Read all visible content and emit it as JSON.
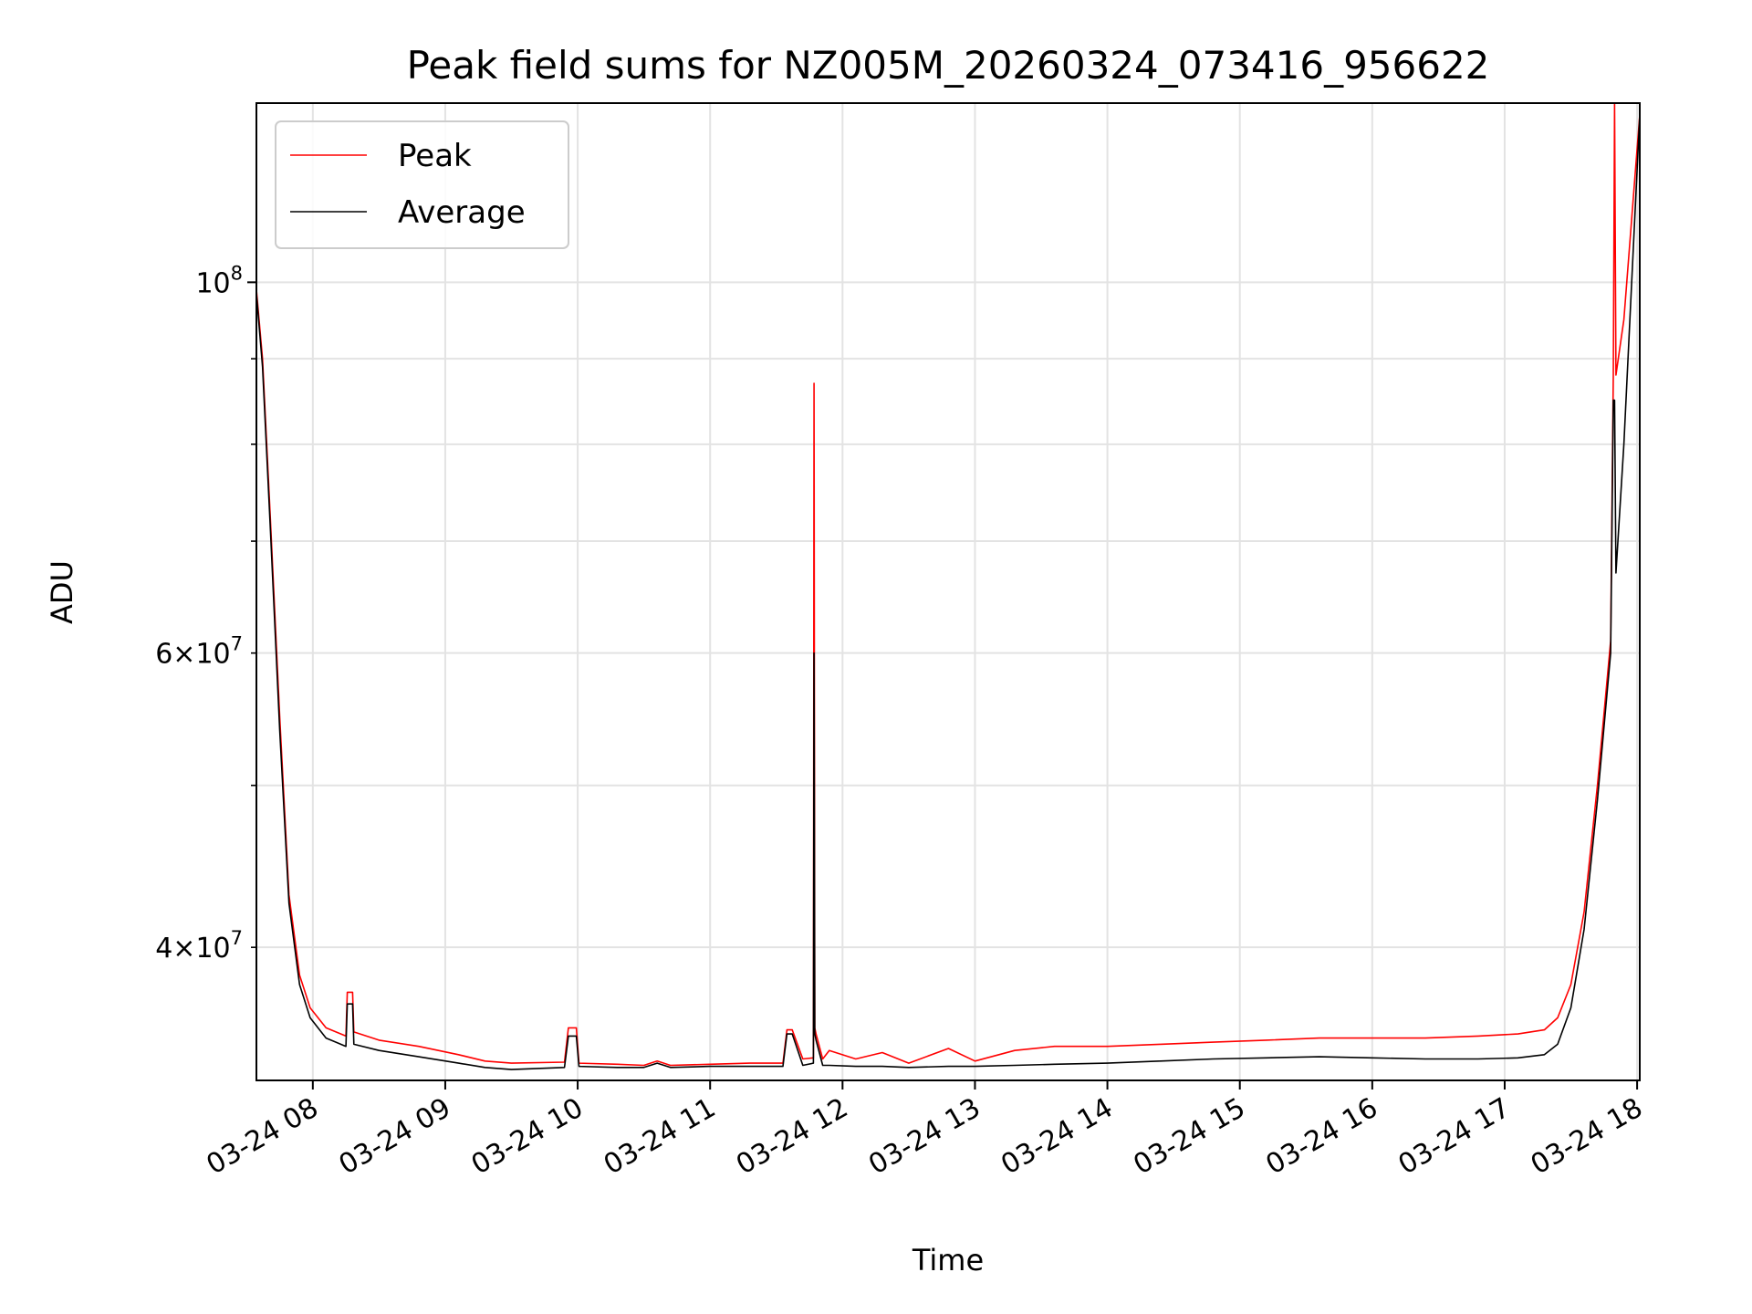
{
  "chart_data": {
    "type": "line",
    "title": "Peak field sums for NZ005M_20260324_073416_956622",
    "xlabel": "Time",
    "ylabel": "ADU",
    "yscale": "log",
    "xlim": [
      7.574,
      18.02
    ],
    "ylim": [
      33300000,
      128000000
    ],
    "grid": true,
    "legend_position": "top-left",
    "x_ticks": [
      {
        "value": 8,
        "label": "03-24 08"
      },
      {
        "value": 9,
        "label": "03-24 09"
      },
      {
        "value": 10,
        "label": "03-24 10"
      },
      {
        "value": 11,
        "label": "03-24 11"
      },
      {
        "value": 12,
        "label": "03-24 12"
      },
      {
        "value": 13,
        "label": "03-24 13"
      },
      {
        "value": 14,
        "label": "03-24 14"
      },
      {
        "value": 15,
        "label": "03-24 15"
      },
      {
        "value": 16,
        "label": "03-24 16"
      },
      {
        "value": 17,
        "label": "03-24 17"
      },
      {
        "value": 18,
        "label": "03-24 18"
      }
    ],
    "y_major_ticks": [
      {
        "value": 100000000,
        "base": "10",
        "exp": "8"
      }
    ],
    "y_minor_ticks": [
      {
        "value": 40000000,
        "mant": "4",
        "base": "10",
        "exp": "7"
      },
      {
        "value": 60000000,
        "mant": "6",
        "base": "10",
        "exp": "7"
      },
      {
        "value": 50000000,
        "mant": "",
        "base": "",
        "exp": ""
      },
      {
        "value": 70000000,
        "mant": "",
        "base": "",
        "exp": ""
      },
      {
        "value": 80000000,
        "mant": "",
        "base": "",
        "exp": ""
      },
      {
        "value": 90000000,
        "mant": "",
        "base": "",
        "exp": ""
      }
    ],
    "series": [
      {
        "name": "Peak",
        "color": "#ff0000",
        "x": [
          7.574,
          7.62,
          7.68,
          7.75,
          7.82,
          7.9,
          7.98,
          8.1,
          8.25,
          8.26,
          8.3,
          8.31,
          8.5,
          8.8,
          9.1,
          9.3,
          9.5,
          9.9,
          9.93,
          9.99,
          10.01,
          10.3,
          10.5,
          10.6,
          10.7,
          11.0,
          11.3,
          11.55,
          11.58,
          11.62,
          11.7,
          11.78,
          11.785,
          11.79,
          11.8,
          11.85,
          11.9,
          12.1,
          12.3,
          12.5,
          12.8,
          13.0,
          13.3,
          13.6,
          14.0,
          14.4,
          14.8,
          15.2,
          15.6,
          16.0,
          16.4,
          16.8,
          17.1,
          17.3,
          17.4,
          17.5,
          17.6,
          17.7,
          17.8,
          17.82,
          17.83,
          17.84,
          17.9,
          18.02
        ],
        "y": [
          99000000,
          90000000,
          72000000,
          55000000,
          43000000,
          38500000,
          36800000,
          35800000,
          35400000,
          37600000,
          37600000,
          35600000,
          35200000,
          34900000,
          34500000,
          34200000,
          34100000,
          34150000,
          35800000,
          35800000,
          34100000,
          34050000,
          34000000,
          34200000,
          34000000,
          34050000,
          34100000,
          34100000,
          35700000,
          35700000,
          34300000,
          34350000,
          87000000,
          35800000,
          35500000,
          34300000,
          34700000,
          34300000,
          34600000,
          34100000,
          34800000,
          34200000,
          34700000,
          34900000,
          34900000,
          35000000,
          35100000,
          35200000,
          35300000,
          35300000,
          35300000,
          35400000,
          35500000,
          35700000,
          36300000,
          38000000,
          42000000,
          50000000,
          61000000,
          88000000,
          128000000,
          88000000,
          95000000,
          126000000
        ]
      },
      {
        "name": "Average",
        "color": "#000000",
        "x": [
          7.574,
          7.62,
          7.68,
          7.75,
          7.82,
          7.9,
          7.98,
          8.1,
          8.25,
          8.26,
          8.3,
          8.31,
          8.5,
          8.8,
          9.1,
          9.3,
          9.5,
          9.9,
          9.93,
          9.99,
          10.01,
          10.3,
          10.5,
          10.6,
          10.7,
          11.0,
          11.3,
          11.55,
          11.58,
          11.62,
          11.7,
          11.78,
          11.785,
          11.79,
          11.8,
          11.85,
          11.9,
          12.1,
          12.3,
          12.5,
          12.8,
          13.0,
          13.3,
          13.6,
          14.0,
          14.4,
          14.8,
          15.2,
          15.6,
          16.0,
          16.4,
          16.8,
          17.1,
          17.3,
          17.4,
          17.5,
          17.6,
          17.7,
          17.8,
          17.82,
          17.83,
          17.84,
          17.9,
          18.02
        ],
        "y": [
          98500000,
          89000000,
          71000000,
          54000000,
          42500000,
          38000000,
          36300000,
          35300000,
          34900000,
          37000000,
          37000000,
          35000000,
          34700000,
          34400000,
          34100000,
          33900000,
          33800000,
          33900000,
          35400000,
          35400000,
          33950000,
          33900000,
          33900000,
          34100000,
          33900000,
          33950000,
          33950000,
          33950000,
          35500000,
          35500000,
          34000000,
          34100000,
          60000000,
          35500000,
          35200000,
          34000000,
          34000000,
          33950000,
          33950000,
          33900000,
          33950000,
          33950000,
          34000000,
          34050000,
          34100000,
          34200000,
          34300000,
          34350000,
          34400000,
          34350000,
          34300000,
          34300000,
          34350000,
          34500000,
          35000000,
          36800000,
          41000000,
          49000000,
          60000000,
          85000000,
          85000000,
          67000000,
          80000000,
          126000000
        ]
      }
    ]
  }
}
